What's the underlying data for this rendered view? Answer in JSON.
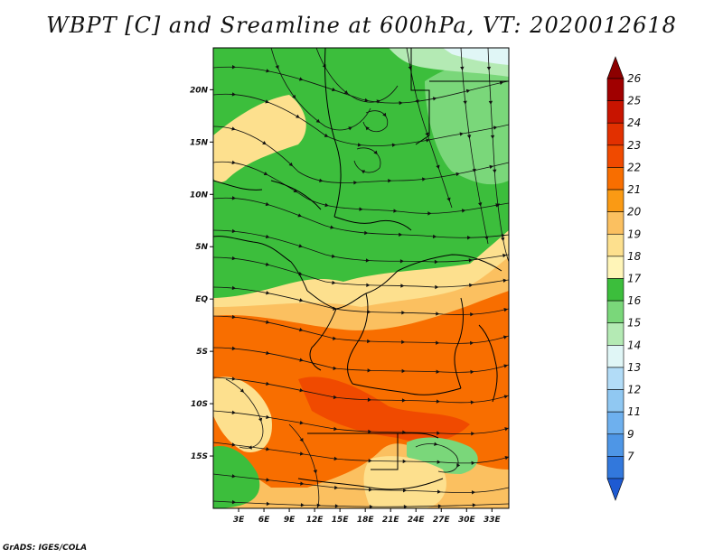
{
  "title": "WBPT [C] and Sreamline at 600hPa, VT: 2020012618",
  "footer": "GrADS: IGES/COLA",
  "map": {
    "region": "Central Africa",
    "lon_range": [
      0,
      35
    ],
    "lat_range": [
      -20,
      24
    ],
    "lat_ticks": [
      {
        "lat": 20,
        "label": "20N"
      },
      {
        "lat": 15,
        "label": "15N"
      },
      {
        "lat": 10,
        "label": "10N"
      },
      {
        "lat": 5,
        "label": "5N"
      },
      {
        "lat": 0,
        "label": "EQ"
      },
      {
        "lat": -5,
        "label": "5S"
      },
      {
        "lat": -10,
        "label": "10S"
      },
      {
        "lat": -15,
        "label": "15S"
      }
    ],
    "lon_ticks": [
      {
        "lon": 3,
        "label": "3E"
      },
      {
        "lon": 6,
        "label": "6E"
      },
      {
        "lon": 9,
        "label": "9E"
      },
      {
        "lon": 12,
        "label": "12E"
      },
      {
        "lon": 15,
        "label": "15E"
      },
      {
        "lon": 18,
        "label": "18E"
      },
      {
        "lon": 21,
        "label": "21E"
      },
      {
        "lon": 24,
        "label": "24E"
      },
      {
        "lon": 27,
        "label": "27E"
      },
      {
        "lon": 30,
        "label": "30E"
      },
      {
        "lon": 33,
        "label": "33E"
      }
    ]
  },
  "colorbar": {
    "levels": [
      {
        "label": "26",
        "color": "#a00000"
      },
      {
        "label": "25",
        "color": "#c81400"
      },
      {
        "label": "24",
        "color": "#e23000"
      },
      {
        "label": "23",
        "color": "#f04a00"
      },
      {
        "label": "22",
        "color": "#f86e00"
      },
      {
        "label": "21",
        "color": "#fa9a14"
      },
      {
        "label": "20",
        "color": "#fbc060"
      },
      {
        "label": "19",
        "color": "#fde08e"
      },
      {
        "label": "18",
        "color": "#fff5b8"
      },
      {
        "label": "17",
        "color": "#3cbe3c"
      },
      {
        "label": "16",
        "color": "#7ad77a"
      },
      {
        "label": "15",
        "color": "#b4eab4"
      },
      {
        "label": "14",
        "color": "#e0f6f6"
      },
      {
        "label": "13",
        "color": "#b2dcf7"
      },
      {
        "label": "12",
        "color": "#90c8f2"
      },
      {
        "label": "11",
        "color": "#6eb0ee"
      },
      {
        "label": "9",
        "color": "#4e96e6"
      },
      {
        "label": "7",
        "color": "#3278dc"
      }
    ],
    "lowest_color": "#1e5ad2",
    "top_color": "#8c0000"
  }
}
